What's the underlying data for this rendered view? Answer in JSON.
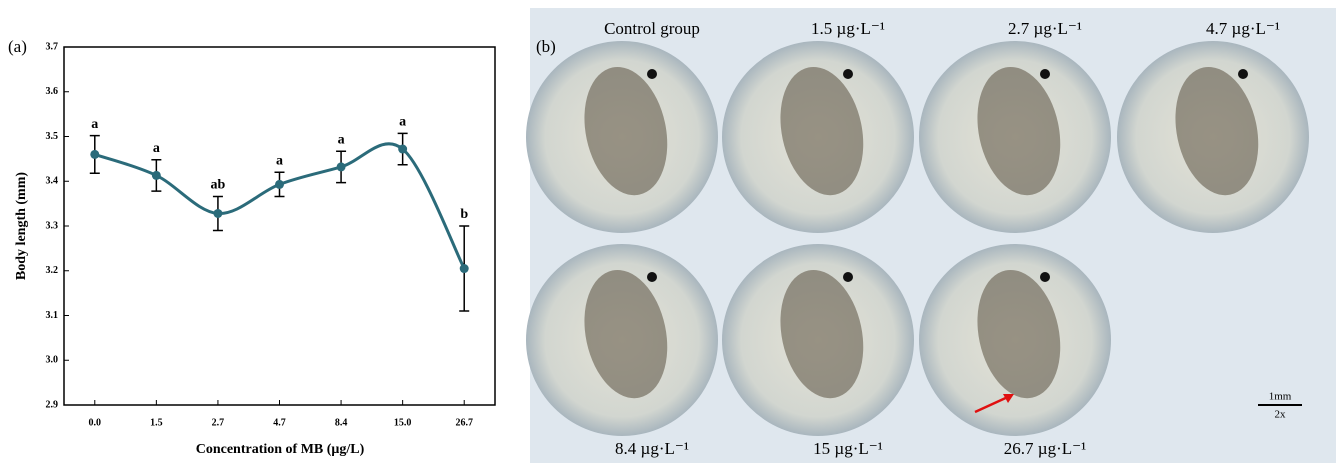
{
  "chart_data": {
    "type": "line",
    "panel_label": "(a)",
    "x_label": "Concentration of MB (μg/L)",
    "y_label": "Body length (mm)",
    "categories": [
      "0.0",
      "1.5",
      "2.7",
      "4.7",
      "8.4",
      "15.0",
      "26.7"
    ],
    "series": [
      {
        "color": "#2b6b7a",
        "values": [
          3.46,
          3.413,
          3.328,
          3.393,
          3.432,
          3.472,
          3.205
        ],
        "errors": [
          0.042,
          0.035,
          0.038,
          0.027,
          0.035,
          0.035,
          0.095
        ],
        "letters": [
          "a",
          "a",
          "ab",
          "a",
          "a",
          "a",
          "b"
        ]
      }
    ],
    "ylim": [
      2.9,
      3.7
    ],
    "yticks": [
      2.9,
      {
        "value": 3,
        "label": "3.0"
      },
      3.1,
      3.2,
      3.3,
      3.4,
      3.5,
      3.6,
      3.7
    ]
  },
  "panel_b": {
    "panel_label": "(b)",
    "images": [
      "Control group",
      "1.5 µg·L⁻¹",
      "2.7 µg·L⁻¹",
      "4.7 µg·L⁻¹",
      "8.4 µg·L⁻¹",
      "15 µg·L⁻¹",
      "26.7 µg·L⁻¹"
    ],
    "scale_bar": {
      "length": "1mm",
      "magnification": "2x"
    }
  }
}
